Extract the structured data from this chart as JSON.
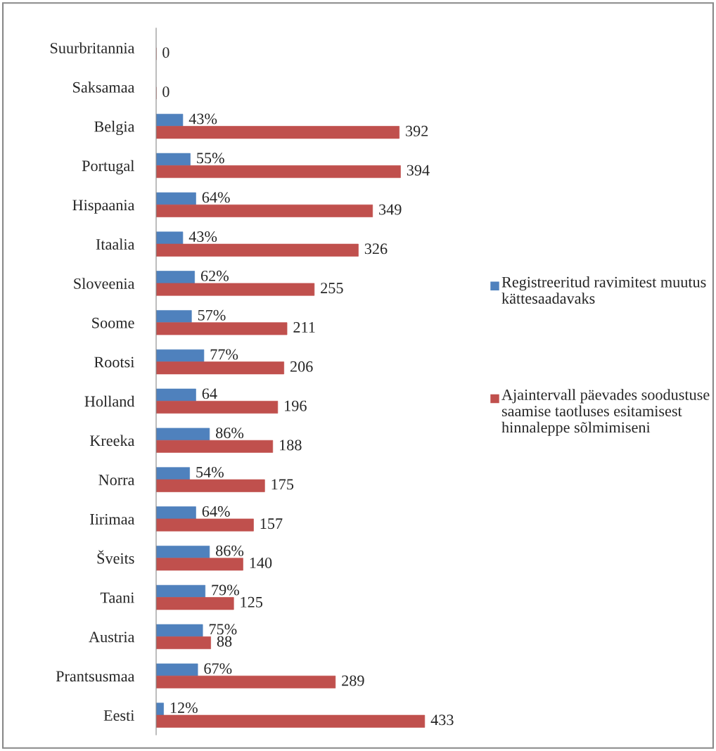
{
  "chart_data": {
    "type": "bar",
    "orientation": "horizontal",
    "legend": "right",
    "categories": [
      "Suurbritannia",
      "Saksamaa",
      "Belgia",
      "Portugal",
      "Hispaania",
      "Itaalia",
      "Sloveenia",
      "Soome",
      "Rootsi",
      "Holland",
      "Kreeka",
      "Norra",
      "Iirimaa",
      "Šveits",
      "Taani",
      "Austria",
      "Prantsusmaa",
      "Eesti"
    ],
    "series": [
      {
        "name": "Registreeritud ravimitest muutus kättesaadavaks",
        "color": "#4f81bd",
        "values": [
          null,
          null,
          43,
          55,
          64,
          43,
          62,
          57,
          77,
          64,
          86,
          54,
          64,
          86,
          79,
          75,
          67,
          12
        ],
        "value_labels": [
          null,
          null,
          "43%",
          "55%",
          "64%",
          "43%",
          "62%",
          "57%",
          "77%",
          "64",
          "86%",
          "54%",
          "64%",
          "86%",
          "79%",
          "75%",
          "67%",
          "12%"
        ]
      },
      {
        "name": "Ajaintervall päevades soodustuse saamise taotluses esitamisest hinnaleppe sõlmimiseni",
        "color": "#c0504d",
        "values": [
          0,
          0,
          392,
          394,
          349,
          326,
          255,
          211,
          206,
          196,
          188,
          175,
          157,
          140,
          125,
          88,
          289,
          433
        ],
        "value_labels": [
          "0",
          "0",
          "392",
          "394",
          "349",
          "326",
          "255",
          "211",
          "206",
          "196",
          "188",
          "175",
          "157",
          "140",
          "125",
          "88",
          "289",
          "433"
        ]
      }
    ]
  }
}
